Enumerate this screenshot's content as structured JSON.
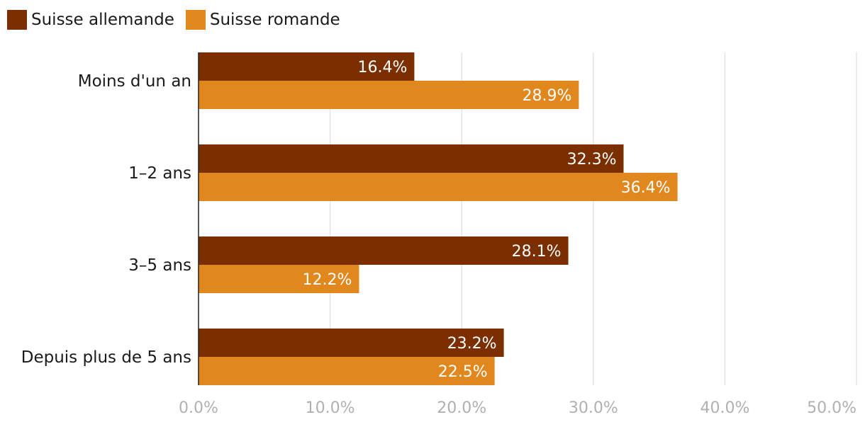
{
  "chart_data": {
    "type": "bar",
    "orientation": "horizontal",
    "categories": [
      "Moins d'un an",
      "1–2 ans",
      "3–5 ans",
      "Depuis plus de 5 ans"
    ],
    "series": [
      {
        "name": "Suisse allemande",
        "color": "#7b2f00",
        "values": [
          16.4,
          32.3,
          28.1,
          23.2
        ],
        "labels": [
          "16.4%",
          "32.3%",
          "28.1%",
          "23.2%"
        ]
      },
      {
        "name": "Suisse romande",
        "color": "#e0871d",
        "values": [
          28.9,
          36.4,
          12.2,
          22.5
        ],
        "labels": [
          "28.9%",
          "36.4%",
          "12.2%",
          "22.5%"
        ]
      }
    ],
    "xlim": [
      0,
      50
    ],
    "xticks": [
      "0.0%",
      "10.0%",
      "20.0%",
      "30.0%",
      "40.0%",
      "50.0%"
    ],
    "grid": true,
    "legend_position": "top-left"
  }
}
